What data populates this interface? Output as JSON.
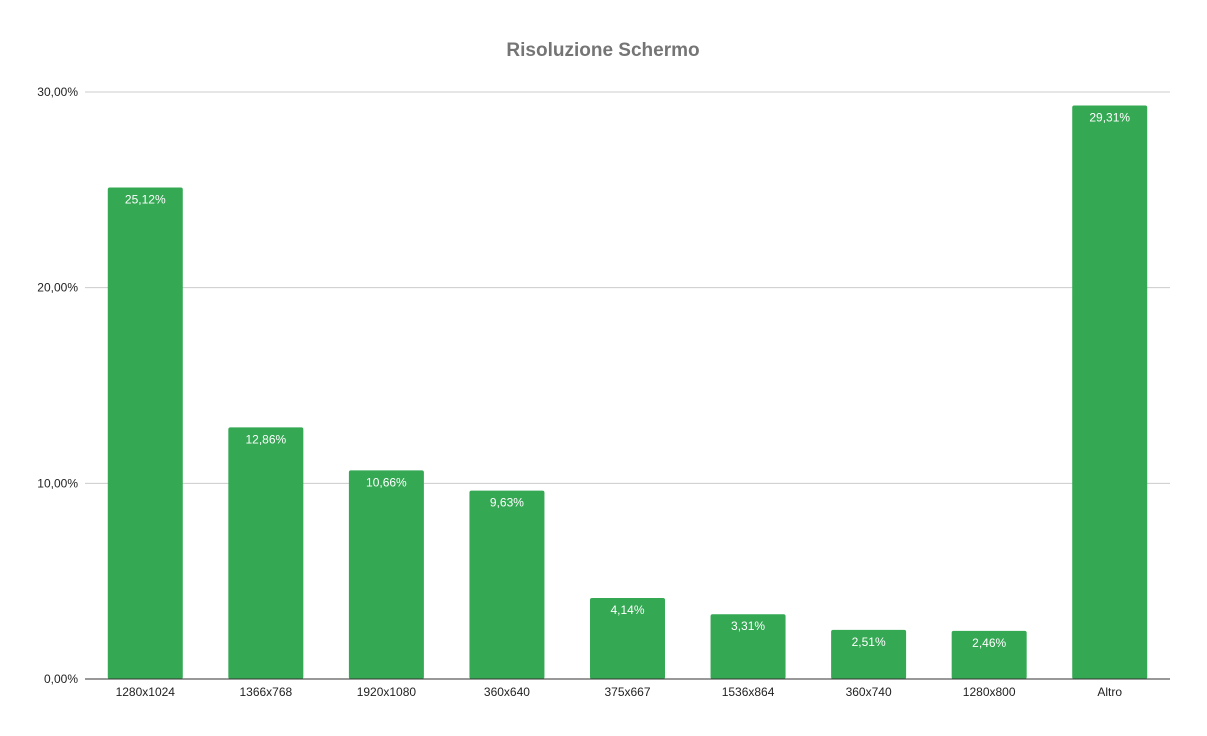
{
  "chart_data": {
    "type": "bar",
    "title": "Risoluzione Schermo",
    "categories": [
      "1280x1024",
      "1366x768",
      "1920x1080",
      "360x640",
      "375x667",
      "1536x864",
      "360x740",
      "1280x800",
      "Altro"
    ],
    "values": [
      25.12,
      12.86,
      10.66,
      9.63,
      4.14,
      3.31,
      2.51,
      2.46,
      29.31
    ],
    "value_labels": [
      "25,12%",
      "12,86%",
      "10,66%",
      "9,63%",
      "4,14%",
      "3,31%",
      "2,51%",
      "2,46%",
      "29,31%"
    ],
    "ylim": [
      0,
      30
    ],
    "yticks": [
      0,
      10,
      20,
      30
    ],
    "ytick_labels": [
      "0,00%",
      "10,00%",
      "20,00%",
      "30,00%"
    ],
    "xlabel": "",
    "ylabel": "",
    "grid": true,
    "legend": "none",
    "bar_color": "#34a853",
    "grid_color": "#cccccc",
    "axis_color": "#333333"
  }
}
